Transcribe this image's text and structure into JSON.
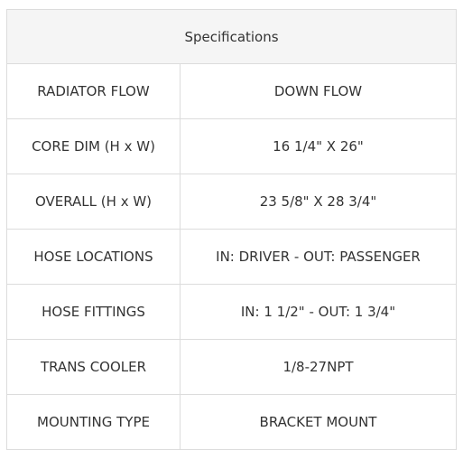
{
  "specifications": {
    "title": "Specifications",
    "rows": [
      {
        "label": "RADIATOR FLOW",
        "value": "DOWN FLOW"
      },
      {
        "label": "CORE DIM (H x W)",
        "value": "16 1/4\" X 26\""
      },
      {
        "label": "OVERALL (H x W)",
        "value": "23 5/8\" X 28 3/4\""
      },
      {
        "label": "HOSE LOCATIONS",
        "value": "IN: DRIVER - OUT: PASSENGER"
      },
      {
        "label": "HOSE FITTINGS",
        "value": "IN: 1 1/2\" - OUT: 1 3/4\""
      },
      {
        "label": "TRANS COOLER",
        "value": "1/8-27NPT"
      },
      {
        "label": "MOUNTING TYPE",
        "value": "BRACKET MOUNT"
      }
    ]
  }
}
